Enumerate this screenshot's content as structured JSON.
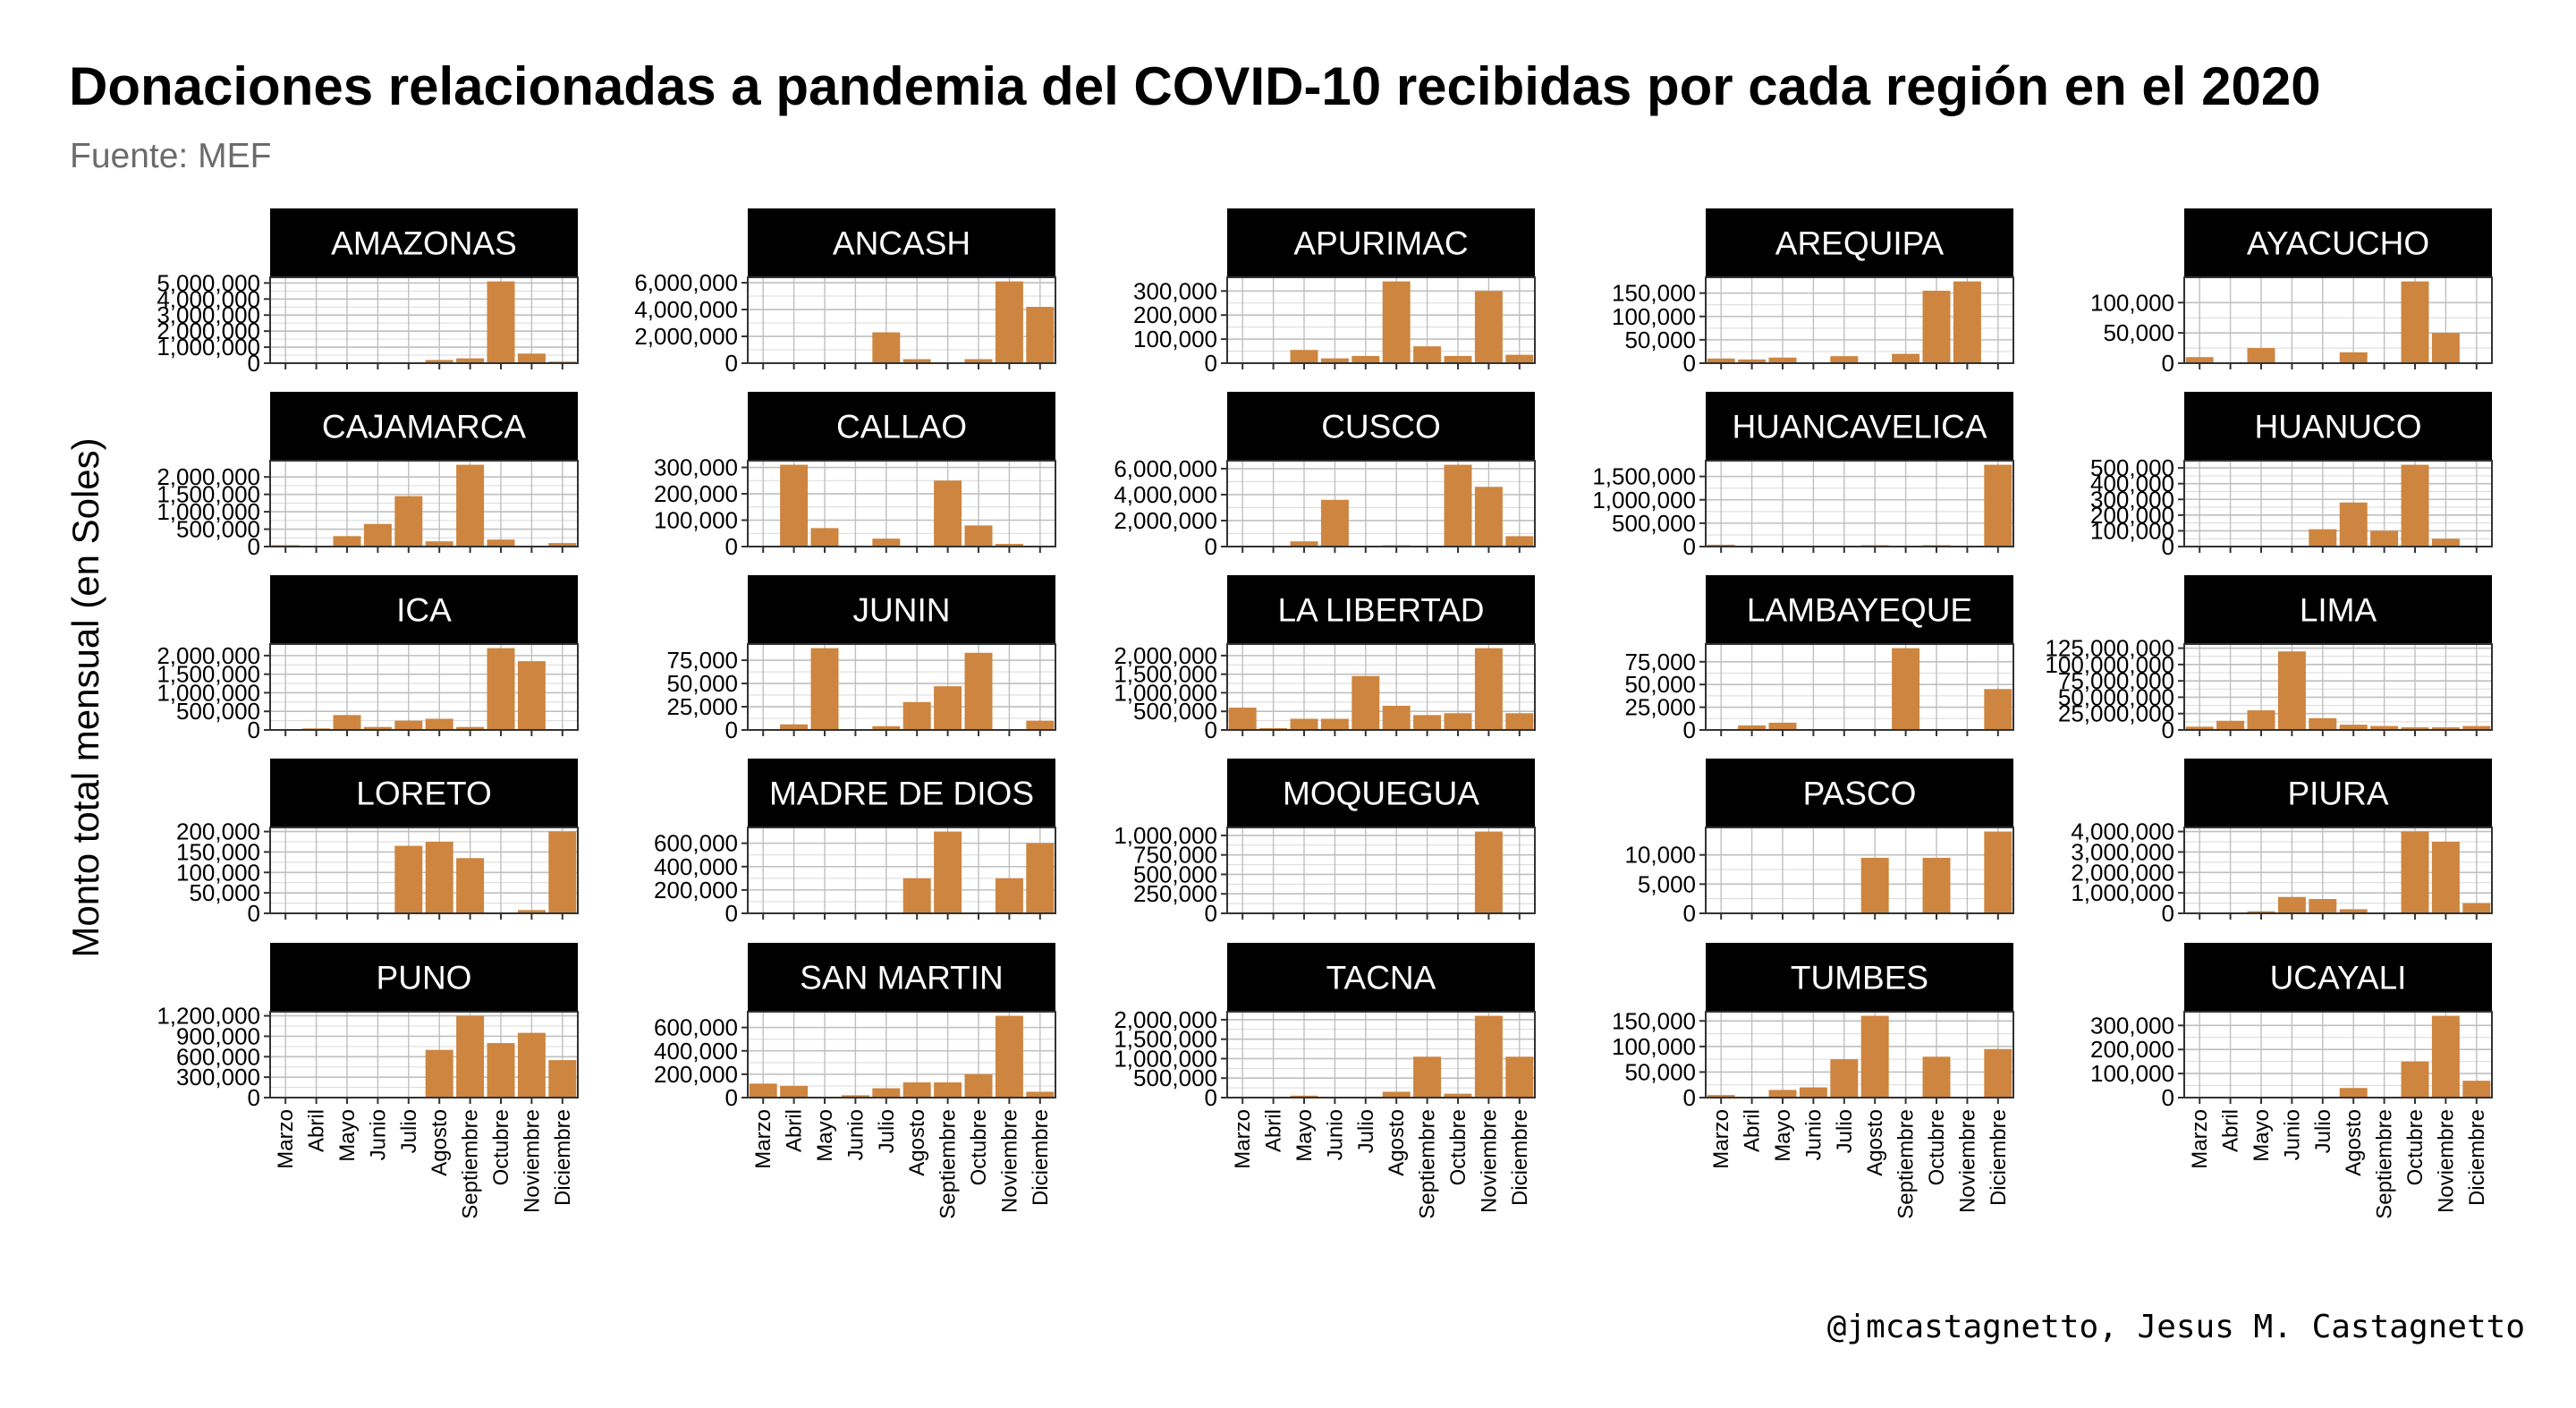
{
  "title": "Donaciones relacionadas a pandemia del COVID-10 recibidas por cada región en el 2020",
  "subtitle": "Fuente: MEF",
  "ylabel": "Monto total mensual (en Soles)",
  "caption": "@jmcastagnetto, Jesus M. Castagnetto",
  "colors": {
    "bar": "#CD853F",
    "strip": "#000000",
    "strip_text": "#ffffff",
    "grid": "#bfbfbf"
  },
  "chart_data": {
    "type": "bar",
    "facets": "5x5, independent y scales",
    "grid": true,
    "categories": [
      "Marzo",
      "Abril",
      "Mayo",
      "Junio",
      "Julio",
      "Agosto",
      "Septiembre",
      "Octubre",
      "Noviembre",
      "Diciembre"
    ],
    "panels": [
      {
        "name": "AMAZONAS",
        "yticks": [
          0,
          1000000,
          2000000,
          3000000,
          4000000,
          5000000
        ],
        "ytick_labels": [
          "0",
          "1,000,000",
          "2,000,000",
          "3,000,000",
          "4,000,000",
          "5,000,000"
        ],
        "values": [
          0,
          50000,
          0,
          0,
          60000,
          200000,
          300000,
          5100000,
          600000,
          100000
        ]
      },
      {
        "name": "ANCASH",
        "yticks": [
          0,
          2000000,
          4000000,
          6000000
        ],
        "ytick_labels": [
          "0",
          "2,000,000",
          "4,000,000",
          "6,000,000"
        ],
        "values": [
          0,
          0,
          0,
          0,
          2300000,
          300000,
          0,
          300000,
          6100000,
          4200000
        ]
      },
      {
        "name": "APURIMAC",
        "yticks": [
          0,
          100000,
          200000,
          300000
        ],
        "ytick_labels": [
          "0",
          "100,000",
          "200,000",
          "300,000"
        ],
        "values": [
          0,
          0,
          55000,
          20000,
          30000,
          340000,
          70000,
          30000,
          300000,
          35000
        ]
      },
      {
        "name": "AREQUIPA",
        "yticks": [
          0,
          50000,
          100000,
          150000
        ],
        "ytick_labels": [
          "0",
          "50,000",
          "100,000",
          "150,000"
        ],
        "values": [
          10000,
          8000,
          12000,
          0,
          15000,
          0,
          20000,
          155000,
          175000,
          0
        ]
      },
      {
        "name": "AYACUCHO",
        "yticks": [
          0,
          50000,
          100000
        ],
        "ytick_labels": [
          "0",
          "50,000",
          "100,000"
        ],
        "values": [
          10000,
          0,
          25000,
          0,
          0,
          18000,
          0,
          135000,
          50000,
          0
        ]
      },
      {
        "name": "CAJAMARCA",
        "yticks": [
          0,
          500000,
          1000000,
          1500000,
          2000000
        ],
        "ytick_labels": [
          "0",
          "500,000",
          "1,000,000",
          "1,500,000",
          "2,000,000"
        ],
        "values": [
          40000,
          0,
          300000,
          650000,
          1450000,
          150000,
          2350000,
          200000,
          0,
          100000
        ]
      },
      {
        "name": "CALLAO",
        "yticks": [
          0,
          100000,
          200000,
          300000
        ],
        "ytick_labels": [
          "0",
          "100,000",
          "200,000",
          "300,000"
        ],
        "values": [
          0,
          310000,
          70000,
          0,
          30000,
          0,
          250000,
          80000,
          10000,
          0
        ]
      },
      {
        "name": "CUSCO",
        "yticks": [
          0,
          2000000,
          4000000,
          6000000
        ],
        "ytick_labels": [
          "0",
          "2,000,000",
          "4,000,000",
          "6,000,000"
        ],
        "values": [
          0,
          0,
          400000,
          3600000,
          0,
          100000,
          0,
          6300000,
          4600000,
          800000
        ]
      },
      {
        "name": "HUANCAVELICA",
        "yticks": [
          0,
          500000,
          1000000,
          1500000
        ],
        "ytick_labels": [
          "0",
          "500,000",
          "1,000,000",
          "1,500,000"
        ],
        "values": [
          40000,
          0,
          0,
          0,
          0,
          30000,
          0,
          30000,
          0,
          1750000
        ]
      },
      {
        "name": "HUANUCO",
        "yticks": [
          0,
          100000,
          200000,
          300000,
          400000,
          500000
        ],
        "ytick_labels": [
          "0",
          "100,000",
          "200,000",
          "300,000",
          "400,000",
          "500,000"
        ],
        "values": [
          0,
          0,
          0,
          0,
          110000,
          280000,
          100000,
          520000,
          50000,
          0
        ]
      },
      {
        "name": "ICA",
        "yticks": [
          0,
          500000,
          1000000,
          1500000,
          2000000
        ],
        "ytick_labels": [
          "0",
          "500,000",
          "1,000,000",
          "1,500,000",
          "2,000,000"
        ],
        "values": [
          20000,
          40000,
          400000,
          80000,
          250000,
          300000,
          80000,
          2200000,
          1850000,
          0
        ]
      },
      {
        "name": "JUNIN",
        "yticks": [
          0,
          25000,
          50000,
          75000
        ],
        "ytick_labels": [
          "0",
          "25,000",
          "50,000",
          "75,000"
        ],
        "values": [
          0,
          6000,
          88000,
          0,
          4000,
          30000,
          47000,
          83000,
          0,
          10000
        ]
      },
      {
        "name": "LA LIBERTAD",
        "yticks": [
          0,
          500000,
          1000000,
          1500000,
          2000000
        ],
        "ytick_labels": [
          "0",
          "500,000",
          "1,000,000",
          "1,500,000",
          "2,000,000"
        ],
        "values": [
          600000,
          50000,
          300000,
          300000,
          1450000,
          650000,
          400000,
          450000,
          2200000,
          450000
        ]
      },
      {
        "name": "LAMBAYEQUE",
        "yticks": [
          0,
          25000,
          50000,
          75000
        ],
        "ytick_labels": [
          "0",
          "25,000",
          "50,000",
          "75,000"
        ],
        "values": [
          0,
          5000,
          8000,
          0,
          0,
          0,
          90000,
          0,
          0,
          45000
        ]
      },
      {
        "name": "LIMA",
        "yticks": [
          0,
          25000000,
          50000000,
          75000000,
          100000000,
          125000000
        ],
        "ytick_labels": [
          "0",
          "25,000,000",
          "50,000,000",
          "75,000,000",
          "100,000,000",
          "125,000,000"
        ],
        "values": [
          5000000,
          14000000,
          30000000,
          120000000,
          18000000,
          8000000,
          6000000,
          4000000,
          4000000,
          6000000
        ]
      },
      {
        "name": "LORETO",
        "yticks": [
          0,
          50000,
          100000,
          150000,
          200000
        ],
        "ytick_labels": [
          "0",
          "50,000",
          "100,000",
          "150,000",
          "200,000"
        ],
        "values": [
          0,
          0,
          0,
          0,
          165000,
          175000,
          135000,
          0,
          8000,
          200000
        ]
      },
      {
        "name": "MADRE DE DIOS",
        "yticks": [
          0,
          200000,
          400000,
          600000
        ],
        "ytick_labels": [
          "0",
          "200,000",
          "400,000",
          "600,000"
        ],
        "values": [
          0,
          0,
          0,
          0,
          0,
          300000,
          700000,
          0,
          300000,
          600000
        ]
      },
      {
        "name": "MOQUEGUA",
        "yticks": [
          0,
          250000,
          500000,
          750000,
          1000000
        ],
        "ytick_labels": [
          "0",
          "250,000",
          "500,000",
          "750,000",
          "1,000,000"
        ],
        "values": [
          0,
          0,
          0,
          0,
          0,
          0,
          0,
          0,
          1050000,
          0
        ]
      },
      {
        "name": "PASCO",
        "yticks": [
          0,
          5000,
          10000
        ],
        "ytick_labels": [
          "0",
          "5,000",
          "10,000"
        ],
        "values": [
          0,
          0,
          0,
          0,
          0,
          9500,
          0,
          9500,
          0,
          14000
        ]
      },
      {
        "name": "PIURA",
        "yticks": [
          0,
          1000000,
          2000000,
          3000000,
          4000000
        ],
        "ytick_labels": [
          "0",
          "1,000,000",
          "2,000,000",
          "3,000,000",
          "4,000,000"
        ],
        "values": [
          0,
          0,
          100000,
          800000,
          700000,
          200000,
          0,
          4000000,
          3500000,
          500000
        ]
      },
      {
        "name": "PUNO",
        "yticks": [
          0,
          300000,
          600000,
          900000,
          1200000
        ],
        "ytick_labels": [
          "0",
          "300,000",
          "600,000",
          "900,000",
          "1,200,000"
        ],
        "values": [
          0,
          0,
          0,
          0,
          0,
          700000,
          1200000,
          800000,
          950000,
          550000
        ]
      },
      {
        "name": "SAN MARTIN",
        "yticks": [
          0,
          200000,
          400000,
          600000
        ],
        "ytick_labels": [
          "0",
          "200,000",
          "400,000",
          "600,000"
        ],
        "values": [
          120000,
          100000,
          0,
          20000,
          80000,
          130000,
          130000,
          200000,
          700000,
          50000
        ]
      },
      {
        "name": "TACNA",
        "yticks": [
          0,
          500000,
          1000000,
          1500000,
          2000000
        ],
        "ytick_labels": [
          "0",
          "500,000",
          "1,000,000",
          "1,500,000",
          "2,000,000"
        ],
        "values": [
          0,
          0,
          50000,
          0,
          0,
          150000,
          1050000,
          100000,
          2100000,
          1050000
        ]
      },
      {
        "name": "TUMBES",
        "yticks": [
          0,
          50000,
          100000,
          150000
        ],
        "ytick_labels": [
          "0",
          "50,000",
          "100,000",
          "150,000"
        ],
        "values": [
          5000,
          0,
          15000,
          20000,
          75000,
          160000,
          0,
          80000,
          0,
          95000
        ]
      },
      {
        "name": "UCAYALI",
        "yticks": [
          0,
          100000,
          200000,
          300000
        ],
        "ytick_labels": [
          "0",
          "100,000",
          "200,000",
          "300,000"
        ],
        "values": [
          0,
          0,
          0,
          0,
          0,
          40000,
          0,
          150000,
          340000,
          70000
        ]
      }
    ]
  }
}
